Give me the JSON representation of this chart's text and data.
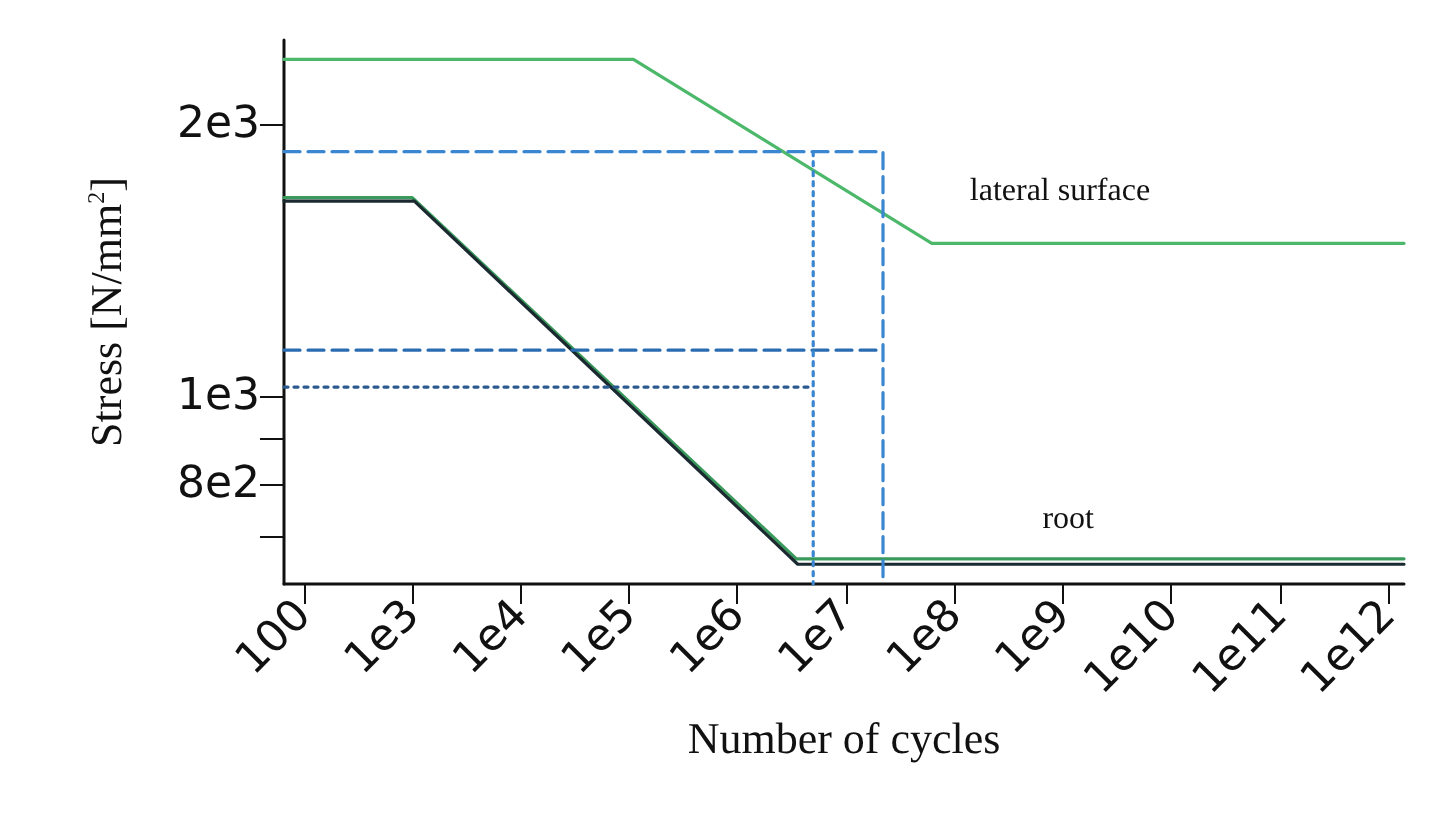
{
  "chart_data": {
    "type": "line",
    "xlabel": "Number of cycles",
    "ylabel": "Stress [N/mm$^{2}$]",
    "log": "xy",
    "grid": false,
    "legend": false,
    "marker": "none",
    "xlim": [
      66,
      1400000000000.0
    ],
    "ylim": [
      620,
      2480
    ],
    "xticks": [
      100,
      {
        "value": 1000,
        "label": "1e3"
      },
      {
        "value": 10000,
        "label": "1e4"
      },
      {
        "value": 100000,
        "label": "1e5"
      },
      {
        "value": 1000000,
        "label": "1e6"
      },
      {
        "value": 10000000,
        "label": "1e7"
      },
      {
        "value": 100000000,
        "label": "1e8"
      },
      {
        "value": 1000000000,
        "label": "1e9"
      },
      {
        "value": 10000000000,
        "label": "1e10"
      },
      {
        "value": 100000000000,
        "label": "1e11"
      },
      {
        "value": 1000000000000,
        "label": "1e12"
      }
    ],
    "yticks": [
      {
        "value": 700,
        "label": null
      },
      {
        "value": 800,
        "label": "8e2"
      },
      {
        "value": 900,
        "label": null
      },
      {
        "value": 1000,
        "label": "1e3"
      },
      {
        "value": 2000,
        "label": "2e3"
      }
    ],
    "series": [
      {
        "name": "lateral surface",
        "color": "#4cb86a",
        "x": [
          66,
          110000,
          62000000,
          1400000000000.0
        ],
        "values": [
          2360,
          2360,
          1477,
          1477
        ],
        "line_style": "solid"
      },
      {
        "name": "root",
        "color": "#3a9a5c",
        "x": [
          66,
          1000,
          3500000,
          1400000000000.0
        ],
        "values": [
          1660,
          1660,
          661,
          661
        ],
        "line_style": "solid"
      },
      {
        "color": "#1a2a30",
        "x": [
          66,
          1050,
          3600000,
          1400000000000.0
        ],
        "values": [
          1645,
          1645,
          652,
          652
        ],
        "line_style": "solid"
      },
      {
        "color": "#3a86d0",
        "x": [
          66,
          22000000,
          22000000
        ],
        "values": [
          1866,
          1866,
          620
        ],
        "line_style": "dashed"
      },
      {
        "color": "#2a6cb0",
        "x": [
          66,
          22000000
        ],
        "values": [
          1125,
          1125
        ],
        "line_style": "dashed"
      },
      {
        "color": "#2a5a90",
        "x": [
          66,
          5000000
        ],
        "values": [
          1024,
          1024
        ],
        "line_style": "dotted"
      },
      {
        "color": "#3a86d0",
        "x": [
          5000000,
          5000000
        ],
        "values": [
          1866,
          620
        ],
        "line_style": "dotted"
      }
    ]
  }
}
